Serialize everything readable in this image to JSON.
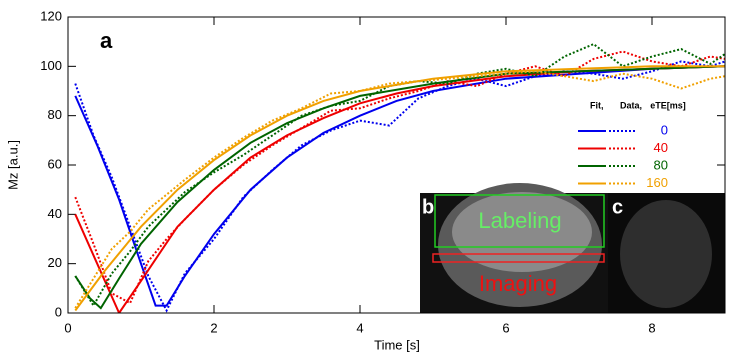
{
  "chart_data": {
    "type": "line",
    "panel_label": "a",
    "x_label": "Time [s]",
    "y_label": "Mz [a.u.]",
    "xlim": [
      0,
      9
    ],
    "ylim": [
      0,
      120
    ],
    "xticks": [
      0,
      2,
      4,
      6,
      8
    ],
    "yticks": [
      0,
      20,
      40,
      60,
      80,
      100,
      120
    ],
    "legend_header": [
      "Fit,",
      "Data,",
      "eTE[ms]"
    ],
    "series": [
      {
        "name": "0",
        "color": "#0000ee",
        "fit": {
          "x": [
            0.1,
            0.4,
            0.7,
            1.0,
            1.2,
            1.35,
            1.6,
            2.0,
            2.5,
            3.0,
            3.5,
            4.0,
            4.5,
            5.0,
            6.0,
            7.0,
            8.0,
            9.0
          ],
          "values": [
            88,
            68,
            46,
            20,
            3,
            3,
            15,
            32,
            50,
            63,
            73,
            80,
            86,
            90,
            95,
            97,
            99,
            100
          ]
        },
        "data": {
          "x": [
            0.1,
            0.35,
            0.6,
            0.85,
            1.1,
            1.35,
            1.6,
            2.0,
            2.4,
            2.8,
            3.2,
            3.6,
            4.0,
            4.4,
            4.8,
            5.2,
            5.6,
            6.0,
            6.4,
            6.8,
            7.2,
            7.6,
            8.0,
            8.4,
            8.8,
            9.0
          ],
          "values": [
            93,
            72,
            55,
            35,
            15,
            1,
            16,
            30,
            47,
            58,
            68,
            74,
            78,
            76,
            87,
            92,
            95,
            92,
            96,
            98,
            97,
            95,
            98,
            102,
            100,
            102
          ]
        }
      },
      {
        "name": "40",
        "color": "#ee0000",
        "fit": {
          "x": [
            0.1,
            0.4,
            0.7,
            1.0,
            1.5,
            2.0,
            2.5,
            3.0,
            3.5,
            4.0,
            4.5,
            5.0,
            6.0,
            7.0,
            8.0,
            9.0
          ],
          "values": [
            40,
            20,
            0,
            13,
            35,
            50,
            63,
            72,
            79,
            85,
            89,
            92,
            96,
            98,
            99,
            100
          ]
        },
        "data": {
          "x": [
            0.1,
            0.35,
            0.6,
            0.85,
            1.1,
            1.35,
            1.6,
            2.0,
            2.4,
            2.8,
            3.2,
            3.6,
            4.0,
            4.4,
            4.8,
            5.2,
            5.6,
            6.0,
            6.4,
            6.8,
            7.2,
            7.6,
            8.0,
            8.4,
            8.8,
            9.0
          ],
          "values": [
            47,
            28,
            8,
            4,
            21,
            30,
            38,
            50,
            60,
            68,
            75,
            82,
            83,
            87,
            90,
            94,
            92,
            97,
            100,
            96,
            103,
            106,
            102,
            100,
            104,
            103
          ]
        }
      },
      {
        "name": "80",
        "color": "#006400",
        "fit": {
          "x": [
            0.1,
            0.3,
            0.45,
            0.7,
            1.0,
            1.5,
            2.0,
            2.5,
            3.0,
            3.5,
            4.0,
            5.0,
            6.0,
            7.0,
            8.0,
            9.0
          ],
          "values": [
            15,
            6,
            2,
            14,
            28,
            45,
            58,
            69,
            77,
            83,
            88,
            93,
            97,
            98,
            99,
            100
          ]
        },
        "data": {
          "x": [
            0.1,
            0.35,
            0.6,
            0.85,
            1.1,
            1.35,
            1.6,
            2.0,
            2.4,
            2.8,
            3.2,
            3.6,
            4.0,
            4.4,
            4.8,
            5.2,
            5.6,
            6.0,
            6.4,
            6.8,
            7.2,
            7.6,
            8.0,
            8.4,
            8.8,
            9.0
          ],
          "values": [
            15,
            3,
            16,
            25,
            35,
            42,
            49,
            57,
            64,
            72,
            80,
            84,
            86,
            92,
            94,
            93,
            97,
            99,
            96,
            104,
            109,
            100,
            104,
            107,
            101,
            105
          ]
        }
      },
      {
        "name": "160",
        "color": "#f0a000",
        "fit": {
          "x": [
            0.1,
            0.5,
            1.0,
            1.5,
            2.0,
            2.5,
            3.0,
            3.5,
            4.0,
            5.0,
            6.0,
            7.0,
            8.0,
            9.0
          ],
          "values": [
            1,
            17,
            35,
            50,
            62,
            72,
            80,
            86,
            90,
            95,
            98,
            99,
            100,
            100
          ]
        },
        "data": {
          "x": [
            0.1,
            0.35,
            0.6,
            0.85,
            1.1,
            1.35,
            1.6,
            2.0,
            2.4,
            2.8,
            3.2,
            3.6,
            4.0,
            4.4,
            4.8,
            5.2,
            5.6,
            6.0,
            6.4,
            6.8,
            7.2,
            7.6,
            8.0,
            8.4,
            8.8,
            9.0
          ],
          "values": [
            2,
            14,
            26,
            33,
            42,
            48,
            54,
            63,
            71,
            78,
            83,
            89,
            90,
            93,
            94,
            95,
            96,
            97,
            98,
            96,
            94,
            97,
            95,
            91,
            95,
            96
          ]
        }
      }
    ],
    "insets": [
      {
        "label": "b",
        "labeling": "Labeling",
        "imaging": "Imaging"
      },
      {
        "label": "c"
      }
    ]
  }
}
